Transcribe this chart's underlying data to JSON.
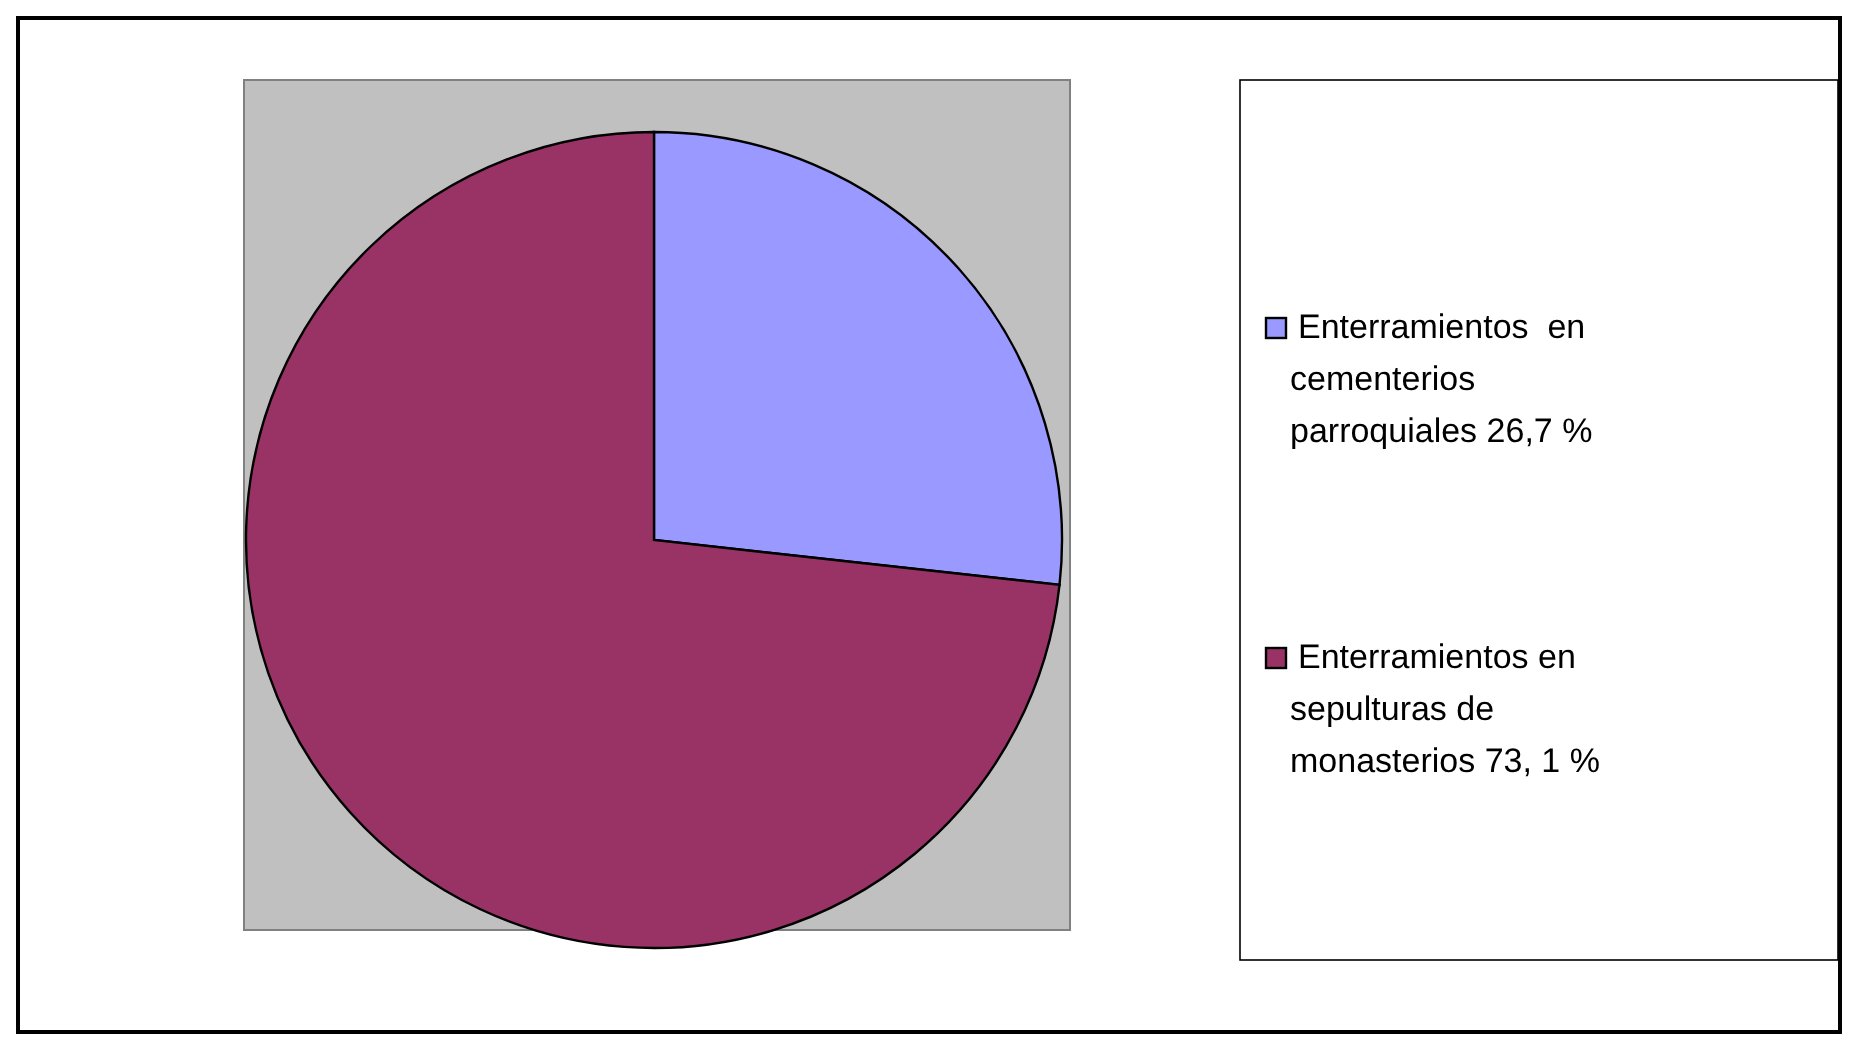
{
  "chart_data": {
    "type": "pie",
    "categories": [
      "Enterramientos  en cementerios parroquiales 26,7 %",
      "Enterramientos en sepulturas de monasterios 73, 1 %"
    ],
    "values": [
      26.7,
      73.1
    ],
    "colors": [
      "#9999ff",
      "#993366"
    ],
    "legend": "right"
  }
}
